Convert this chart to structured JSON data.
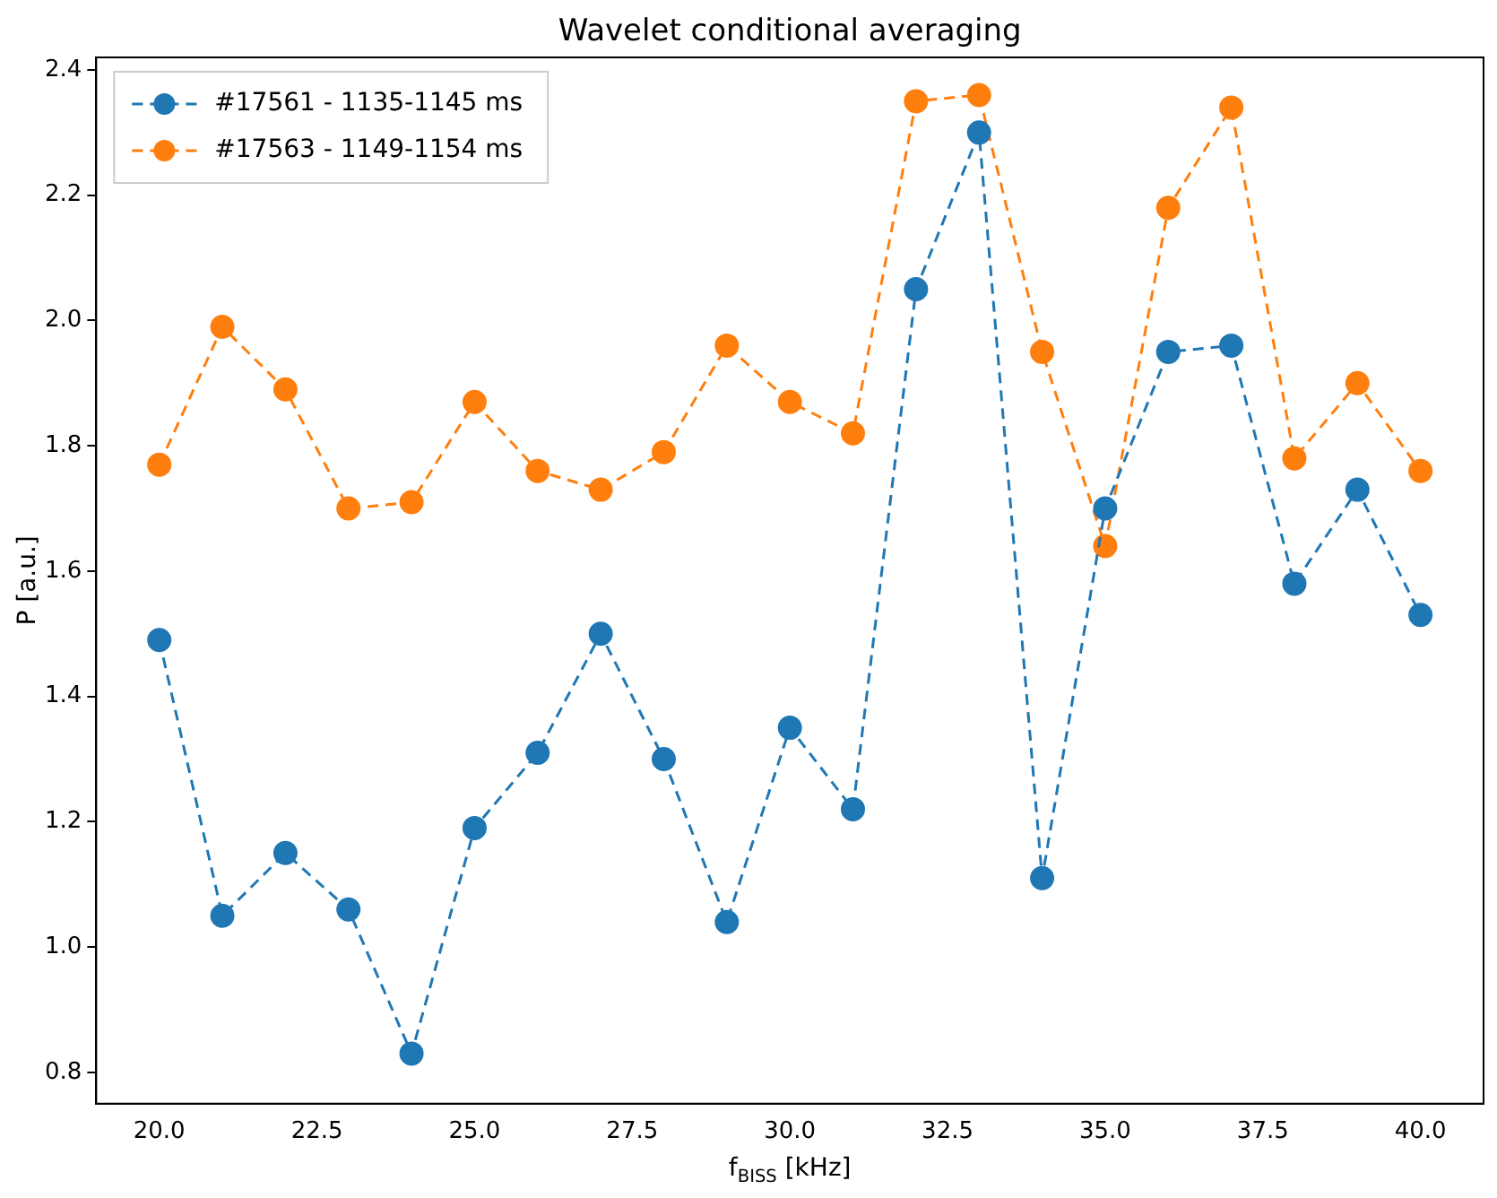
{
  "chart_data": {
    "type": "line",
    "title": "Wavelet conditional averaging",
    "xlabel": "f$_{BISS}$ [kHz]",
    "ylabel": "P [a.u.]",
    "x": [
      20,
      21,
      22,
      23,
      24,
      25,
      26,
      27,
      28,
      29,
      30,
      31,
      32,
      33,
      34,
      35,
      36,
      37,
      38,
      39,
      40
    ],
    "series": [
      {
        "name": "#17561 - 1135-1145 ms",
        "color": "#1f77b4",
        "values": [
          1.49,
          1.05,
          1.15,
          1.06,
          0.83,
          1.19,
          1.31,
          1.5,
          1.3,
          1.04,
          1.35,
          1.22,
          2.05,
          2.3,
          1.11,
          1.7,
          1.95,
          1.96,
          1.58,
          1.73,
          1.53
        ]
      },
      {
        "name": "#17563 - 1149-1154 ms",
        "color": "#ff7f0e",
        "values": [
          1.77,
          1.99,
          1.89,
          1.7,
          1.71,
          1.87,
          1.76,
          1.73,
          1.79,
          1.96,
          1.87,
          1.82,
          2.35,
          2.36,
          1.95,
          1.64,
          2.18,
          2.34,
          1.78,
          1.9,
          1.76
        ]
      }
    ],
    "xlim": [
      19,
      41
    ],
    "xticks": [
      {
        "value": 20,
        "label": "20.0"
      },
      {
        "value": 22.5,
        "label": "22.5"
      },
      {
        "value": 25,
        "label": "25.0"
      },
      {
        "value": 27.5,
        "label": "27.5"
      },
      {
        "value": 30,
        "label": "30.0"
      },
      {
        "value": 32.5,
        "label": "32.5"
      },
      {
        "value": 35,
        "label": "35.0"
      },
      {
        "value": 37.5,
        "label": "37.5"
      },
      {
        "value": 40,
        "label": "40.0"
      }
    ],
    "ylim": [
      0.75,
      2.42
    ],
    "yticks": [
      {
        "value": 0.8,
        "label": "0.8"
      },
      {
        "value": 1,
        "label": "1.0"
      },
      {
        "value": 1.2,
        "label": "1.2"
      },
      {
        "value": 1.4,
        "label": "1.4"
      },
      {
        "value": 1.6,
        "label": "1.6"
      },
      {
        "value": 1.8,
        "label": "1.8"
      },
      {
        "value": 2,
        "label": "2.0"
      },
      {
        "value": 2.2,
        "label": "2.2"
      },
      {
        "value": 2.4,
        "label": "2.4"
      }
    ],
    "grid": false,
    "legend": "top left",
    "marker": "circle",
    "line_style": "dashed"
  }
}
